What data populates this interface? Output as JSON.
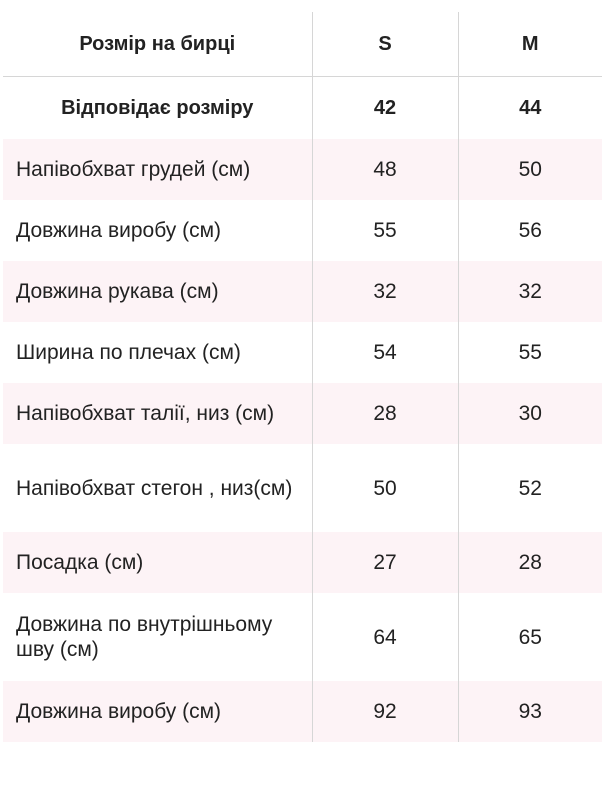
{
  "header": {
    "label": "Розмір на бирці",
    "sizes": [
      "S",
      "M"
    ]
  },
  "equivalent": {
    "label": "Відповідає розміру",
    "values": [
      "42",
      "44"
    ]
  },
  "rows": [
    {
      "label": "Напівобхват грудей (см)",
      "s": "48",
      "m": "50"
    },
    {
      "label": "Довжина виробу (см)",
      "s": "55",
      "m": "56"
    },
    {
      "label": "Довжина рукава (см)",
      "s": "32",
      "m": "32"
    },
    {
      "label": "Ширина по плечах (см)",
      "s": "54",
      "m": "55"
    },
    {
      "label": "Напівобхват талії, низ (см)",
      "s": "28",
      "m": "30"
    },
    {
      "label": "Напівобхват стегон , низ(см)",
      "s": "50",
      "m": "52"
    },
    {
      "label": "Посадка (см)",
      "s": "27",
      "m": "28"
    },
    {
      "label": "Довжина по внутрішньому шву (см)",
      "s": "64",
      "m": "65"
    },
    {
      "label": "Довжина виробу (см)",
      "s": "92",
      "m": "93"
    }
  ],
  "colors": {
    "row_shade": "#fdf3f6",
    "grid_line": "#d6d6d6",
    "text": "#222222"
  }
}
